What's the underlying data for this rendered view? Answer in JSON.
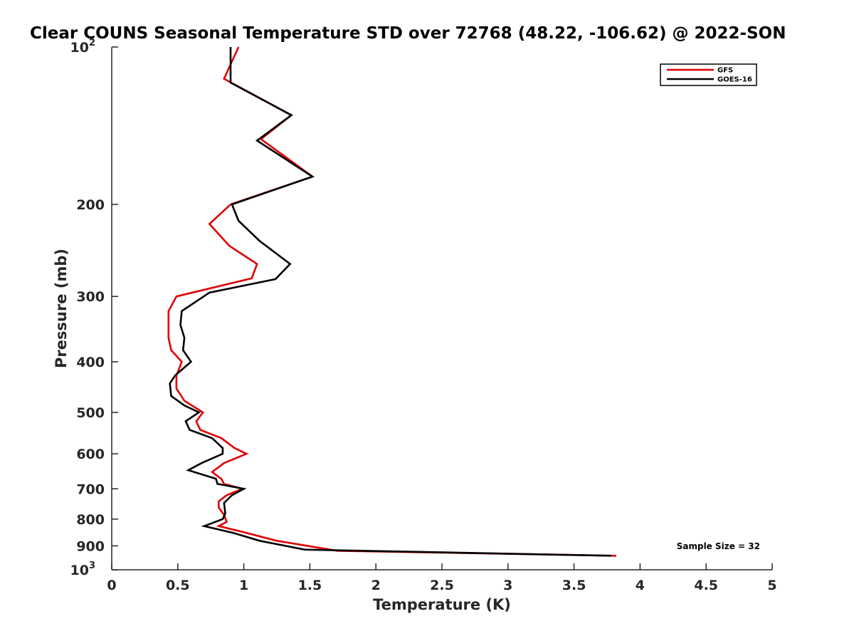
{
  "chart_data": {
    "type": "line",
    "title": "Clear COUNS Seasonal Temperature STD over 72768 (48.22, -106.62) @ 2022-SON",
    "xlabel": "Temperature (K)",
    "ylabel": "Pressure (mb)",
    "xlim": [
      0,
      5
    ],
    "ylim": [
      100,
      1000
    ],
    "y_scale": "log",
    "y_reversed": true,
    "x_ticks": [
      "0",
      "0.5",
      "1",
      "1.5",
      "2",
      "2.5",
      "3",
      "3.5",
      "4",
      "4.5",
      "5"
    ],
    "y_ticks": [
      {
        "value": 100,
        "base": "10",
        "exp": "2"
      },
      {
        "value": 200,
        "label": "200"
      },
      {
        "value": 300,
        "label": "300"
      },
      {
        "value": 400,
        "label": "400"
      },
      {
        "value": 500,
        "label": "500"
      },
      {
        "value": 600,
        "label": "600"
      },
      {
        "value": 700,
        "label": "700"
      },
      {
        "value": 800,
        "label": "800"
      },
      {
        "value": 900,
        "label": "900"
      },
      {
        "value": 1000,
        "base": "10",
        "exp": "3"
      }
    ],
    "legend_position": "top-right",
    "grid": false,
    "annotation": "Sample Size = 32",
    "series": [
      {
        "name": "GFS",
        "color": "#e00000",
        "points": [
          [
            0.96,
            100
          ],
          [
            0.85,
            115
          ],
          [
            1.36,
            135
          ],
          [
            1.13,
            150
          ],
          [
            1.52,
            177
          ],
          [
            0.9,
            200
          ],
          [
            0.74,
            218
          ],
          [
            0.89,
            240
          ],
          [
            1.1,
            260
          ],
          [
            1.06,
            277
          ],
          [
            0.49,
            300
          ],
          [
            0.43,
            320
          ],
          [
            0.43,
            340
          ],
          [
            0.43,
            360
          ],
          [
            0.45,
            380
          ],
          [
            0.53,
            400
          ],
          [
            0.49,
            425
          ],
          [
            0.49,
            450
          ],
          [
            0.55,
            475
          ],
          [
            0.69,
            500
          ],
          [
            0.64,
            520
          ],
          [
            0.67,
            540
          ],
          [
            0.83,
            560
          ],
          [
            0.93,
            585
          ],
          [
            1.02,
            600
          ],
          [
            0.85,
            625
          ],
          [
            0.76,
            650
          ],
          [
            0.83,
            670
          ],
          [
            0.85,
            685
          ],
          [
            0.99,
            700
          ],
          [
            0.87,
            720
          ],
          [
            0.81,
            740
          ],
          [
            0.81,
            760
          ],
          [
            0.85,
            785
          ],
          [
            0.87,
            810
          ],
          [
            0.81,
            825
          ],
          [
            1.02,
            850
          ],
          [
            1.25,
            880
          ],
          [
            1.71,
            920
          ],
          [
            3.82,
            940
          ]
        ]
      },
      {
        "name": "GOES-16",
        "color": "#000000",
        "points": [
          [
            0.9,
            100
          ],
          [
            0.9,
            117
          ],
          [
            1.36,
            135
          ],
          [
            1.1,
            151
          ],
          [
            1.52,
            177
          ],
          [
            0.91,
            200
          ],
          [
            0.96,
            215
          ],
          [
            1.12,
            235
          ],
          [
            1.35,
            260
          ],
          [
            1.24,
            278
          ],
          [
            0.74,
            295
          ],
          [
            0.53,
            320
          ],
          [
            0.52,
            340
          ],
          [
            0.55,
            360
          ],
          [
            0.54,
            380
          ],
          [
            0.6,
            400
          ],
          [
            0.48,
            425
          ],
          [
            0.44,
            440
          ],
          [
            0.45,
            465
          ],
          [
            0.55,
            485
          ],
          [
            0.66,
            500
          ],
          [
            0.56,
            520
          ],
          [
            0.59,
            540
          ],
          [
            0.76,
            560
          ],
          [
            0.84,
            585
          ],
          [
            0.84,
            600
          ],
          [
            0.68,
            625
          ],
          [
            0.58,
            645
          ],
          [
            0.79,
            670
          ],
          [
            0.8,
            685
          ],
          [
            1.0,
            700
          ],
          [
            0.91,
            720
          ],
          [
            0.85,
            745
          ],
          [
            0.86,
            780
          ],
          [
            0.84,
            800
          ],
          [
            0.7,
            825
          ],
          [
            0.92,
            850
          ],
          [
            1.12,
            880
          ],
          [
            1.46,
            915
          ],
          [
            3.78,
            940
          ]
        ]
      }
    ]
  }
}
